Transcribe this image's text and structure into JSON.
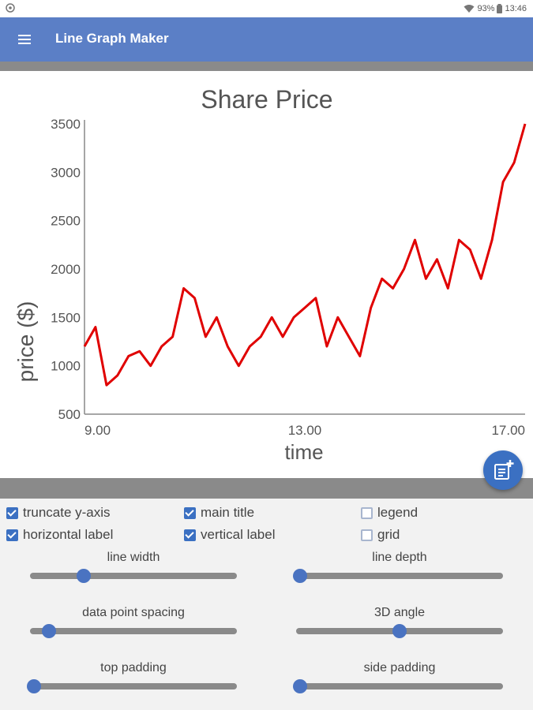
{
  "status_bar": {
    "battery": "93%",
    "time": "13:46"
  },
  "app_bar": {
    "title": "Line Graph Maker",
    "menu_icon": "hamburger-menu-icon"
  },
  "chart_data": {
    "type": "line",
    "title": "Share Price",
    "xlabel": "time",
    "ylabel": "price ($)",
    "xlim": [
      9,
      17
    ],
    "ylim": [
      500,
      3500
    ],
    "yticks": [
      500,
      1000,
      1500,
      2000,
      2500,
      3000,
      3500
    ],
    "xticks": [
      "9.00",
      "13.00",
      "17.00"
    ],
    "xtick_values": [
      9,
      13,
      17
    ],
    "grid": false,
    "legend": false,
    "color": "#e00000",
    "series": [
      {
        "x": [
          9.0,
          9.2,
          9.4,
          9.6,
          9.8,
          10.0,
          10.2,
          10.4,
          10.6,
          10.8,
          11.0,
          11.2,
          11.4,
          11.6,
          11.8,
          12.0,
          12.2,
          12.4,
          12.6,
          12.8,
          13.0,
          13.2,
          13.4,
          13.6,
          13.8,
          14.0,
          14.2,
          14.4,
          14.6,
          14.8,
          15.0,
          15.2,
          15.4,
          15.6,
          15.8,
          16.0,
          16.2,
          16.4,
          16.6,
          16.8,
          17.0
        ],
        "y": [
          1200,
          1400,
          800,
          900,
          1100,
          1150,
          1000,
          1200,
          1300,
          1800,
          1700,
          1300,
          1500,
          1200,
          1000,
          1200,
          1300,
          1500,
          1300,
          1500,
          1600,
          1700,
          1200,
          1500,
          1300,
          1100,
          1600,
          1900,
          1800,
          2000,
          2300,
          1900,
          2100,
          1800,
          2300,
          2200,
          1900,
          2300,
          2900,
          3100,
          3500
        ]
      }
    ]
  },
  "fab": {
    "icon": "note-add-icon"
  },
  "options": {
    "checkboxes": [
      {
        "label": "truncate y-axis",
        "checked": true
      },
      {
        "label": "main title",
        "checked": true
      },
      {
        "label": "legend",
        "checked": false
      },
      {
        "label": "horizontal label",
        "checked": true
      },
      {
        "label": "vertical label",
        "checked": true
      },
      {
        "label": "grid",
        "checked": false
      }
    ],
    "sliders": [
      {
        "label": "line width",
        "value": 0.26
      },
      {
        "label": "line depth",
        "value": 0.02
      },
      {
        "label": "data point spacing",
        "value": 0.09
      },
      {
        "label": "3D angle",
        "value": 0.5
      },
      {
        "label": "top padding",
        "value": 0.02
      },
      {
        "label": "side padding",
        "value": 0.02
      }
    ]
  }
}
